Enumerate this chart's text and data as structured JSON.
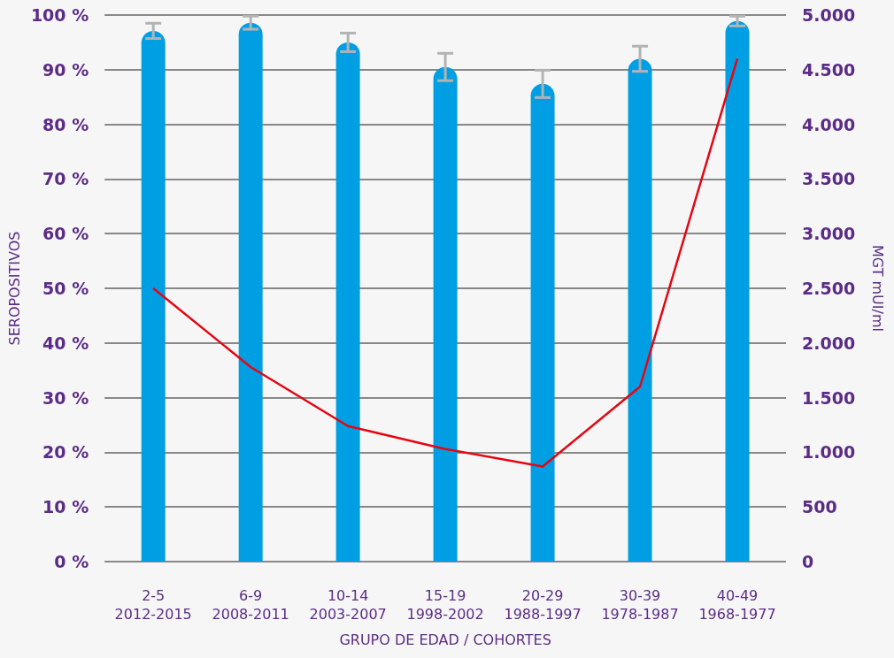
{
  "chart_data": {
    "type": "bar",
    "xlabel": "GRUPO DE EDAD / COHORTES",
    "ylabel": "SEROPOSITIVOS",
    "y2label": "MGT mUI/ml",
    "categories": [
      "2-5\n2012-2015",
      "6-9\n2008-2011",
      "10-14\n2003-2007",
      "15-19\n1998-2002",
      "20-29\n1988-1997",
      "30-39\n1978-1987",
      "40-49\n1968-1977"
    ],
    "series": [
      {
        "color": "#009fe3",
        "values": [
          97.1,
          98.6,
          95,
          90.5,
          87.4,
          92,
          98.9
        ],
        "errors": [
          1.4,
          1.2,
          1.7,
          2.5,
          2.5,
          2.3,
          0.9
        ]
      },
      {
        "type": "line",
        "axis": "y2",
        "color": "#e30613",
        "values": [
          2500,
          1780,
          1240,
          1030,
          870,
          1600,
          4600
        ]
      }
    ],
    "ylim": [
      0,
      100
    ],
    "yticks": [
      {
        "value": 0,
        "label": "0 %"
      },
      {
        "value": 10,
        "label": "10 %"
      },
      {
        "value": 20,
        "label": "20 %"
      },
      {
        "value": 30,
        "label": "30 %"
      },
      {
        "value": 40,
        "label": "40 %"
      },
      {
        "value": 50,
        "label": "50 %"
      },
      {
        "value": 60,
        "label": "60 %"
      },
      {
        "value": 70,
        "label": "70 %"
      },
      {
        "value": 80,
        "label": "80 %"
      },
      {
        "value": 90,
        "label": "90 %"
      },
      {
        "value": 100,
        "label": "100 %"
      }
    ],
    "y2lim": [
      0,
      5000
    ],
    "y2ticks": [
      0,
      500,
      {
        "value": 1000,
        "label": "1.000"
      },
      {
        "value": 1500,
        "label": "1.500"
      },
      {
        "value": 2000,
        "label": "2.000"
      },
      {
        "value": 2500,
        "label": "2.500"
      },
      {
        "value": 3000,
        "label": "3.000"
      },
      {
        "value": 3500,
        "label": "3.500"
      },
      {
        "value": 4000,
        "label": "4.000"
      },
      {
        "value": 4500,
        "label": "4.500"
      },
      {
        "value": 5000,
        "label": "5.000"
      }
    ],
    "grid": "y",
    "marker": "none",
    "line_style": "solid"
  }
}
